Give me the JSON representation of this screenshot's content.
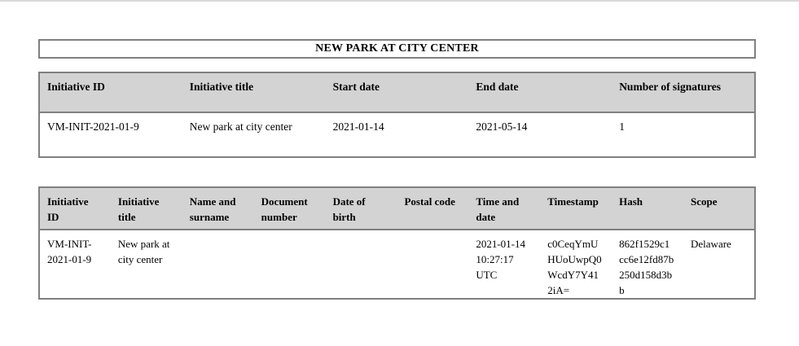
{
  "colors": {
    "page_background": "#ffffff",
    "top_line": "#d9d9d9",
    "table_header_background": "#d3d3d3",
    "table_border": "#808080",
    "text": "#000000"
  },
  "title_box": {
    "title": "NEW PARK AT CITY CENTER"
  },
  "summary_table": {
    "headers": [
      "Initiative ID",
      "Initiative title",
      "Start date",
      "End date",
      "Number of signatures"
    ],
    "row": [
      "VM-INIT-2021-01-9",
      "New park at city center",
      "2021-01-14",
      "2021-05-14",
      "1"
    ]
  },
  "signatures_table": {
    "headers": [
      "Initiative\nID",
      "Initiative\ntitle",
      "Name and\nsurname",
      "Document\nnumber",
      "Date of\nbirth",
      "Postal code",
      "Time and\ndate",
      "Timestamp",
      "Hash",
      "Scope"
    ],
    "row": [
      "VM-INIT-\n2021-01-9",
      "New park at\ncity center",
      "",
      "",
      "",
      "",
      "2021-01-14\n10:27:17\nUTC",
      "c0CeqYmU\nHUoUwpQ0\nWcdY7Y41\n2iA=",
      "862f1529c1\ncc6e12fd87b\n250d158d3b\nb",
      "Delaware"
    ]
  }
}
